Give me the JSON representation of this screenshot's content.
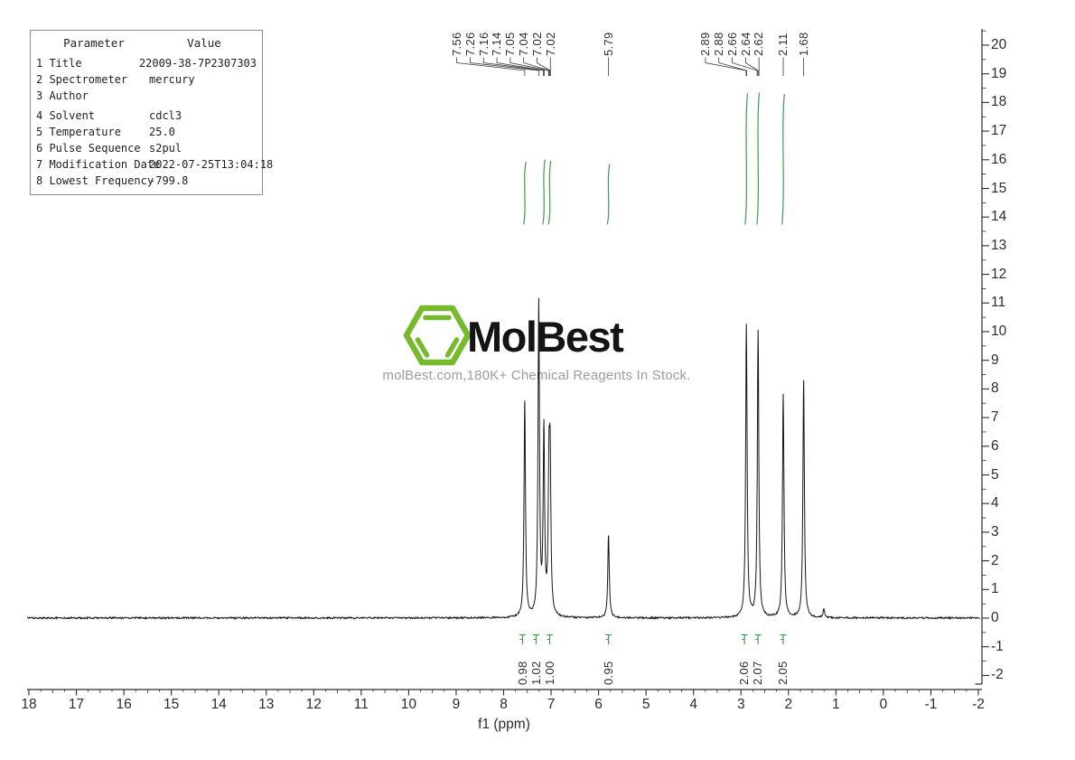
{
  "colors": {
    "spectrum": "#161616",
    "axis": "#2b2b2b",
    "leader": "#3a3a3a",
    "integral_green": "#3f9d46",
    "logo_green": "#77b92c",
    "tagline_gray": "#9c9c9c"
  },
  "parameter_table": {
    "headers": [
      "Parameter",
      "Value"
    ],
    "rows": [
      {
        "num": "1",
        "name": "Title",
        "value": "22009-38-7P2307303"
      },
      {
        "num": "2",
        "name": "Spectrometer",
        "value": "mercury"
      },
      {
        "num": "3",
        "name": "Author",
        "value": ""
      },
      {
        "num": "4",
        "name": "Solvent",
        "value": "cdcl3"
      },
      {
        "num": "5",
        "name": "Temperature",
        "value": "25.0"
      },
      {
        "num": "6",
        "name": "Pulse Sequence",
        "value": "s2pul"
      },
      {
        "num": "7",
        "name": "Modification Date",
        "value": "2022-07-25T13:04:18"
      },
      {
        "num": "8",
        "name": "Lowest Frequency",
        "value": "-799.8"
      }
    ]
  },
  "watermark": {
    "brand": "MolBest",
    "tagline": "molBest.com,180K+ Chemical Reagents In Stock."
  },
  "chart_data": {
    "type": "line",
    "description": "1H NMR spectrum",
    "xlabel": "f1 (ppm)",
    "x_axis": {
      "min": -2,
      "max": 18,
      "major_step": 1,
      "minor_step": 0.25,
      "labels": [
        "18",
        "17",
        "16",
        "15",
        "14",
        "13",
        "12",
        "11",
        "10",
        "9",
        "8",
        "7",
        "6",
        "5",
        "4",
        "3",
        "2",
        "1",
        "0",
        "-1",
        "-2"
      ]
    },
    "y_axis": {
      "min": -2,
      "max": 20,
      "major_step": 1,
      "minor_step": 0.5,
      "side": "right",
      "labels": [
        "20",
        "19",
        "18",
        "17",
        "16",
        "15",
        "14",
        "13",
        "12",
        "11",
        "10",
        "9",
        "8",
        "7",
        "6",
        "5",
        "4",
        "3",
        "2",
        "1",
        "0",
        "-1",
        "-2"
      ]
    },
    "peaks": [
      {
        "ppm": 7.555,
        "height": 7.5
      },
      {
        "ppm": 7.26,
        "height": 10.9
      },
      {
        "ppm": 7.152,
        "height": 6.4
      },
      {
        "ppm": 7.045,
        "height": 4.6
      },
      {
        "ppm": 7.02,
        "height": 4.9
      },
      {
        "ppm": 5.79,
        "height": 2.9
      },
      {
        "ppm": 2.886,
        "height": 10.2
      },
      {
        "ppm": 2.64,
        "height": 10.0
      },
      {
        "ppm": 2.11,
        "height": 7.8
      },
      {
        "ppm": 1.68,
        "height": 8.3
      },
      {
        "ppm": 1.255,
        "height": 0.3
      }
    ],
    "peak_labels": [
      {
        "text": "7.56",
        "anchor_ppm": 7.555
      },
      {
        "text": "7.26",
        "anchor_ppm": 7.26
      },
      {
        "text": "7.16",
        "anchor_ppm": 7.162
      },
      {
        "text": "7.14",
        "anchor_ppm": 7.143
      },
      {
        "text": "7.05",
        "anchor_ppm": 7.052
      },
      {
        "text": "7.04",
        "anchor_ppm": 7.04
      },
      {
        "text": "7.02",
        "anchor_ppm": 7.025
      },
      {
        "text": "7.02",
        "anchor_ppm": 7.015
      },
      {
        "text": "5.79",
        "anchor_ppm": 5.79
      },
      {
        "text": "2.89",
        "anchor_ppm": 2.892
      },
      {
        "text": "2.88",
        "anchor_ppm": 2.88
      },
      {
        "text": "2.66",
        "anchor_ppm": 2.66
      },
      {
        "text": "2.64",
        "anchor_ppm": 2.641
      },
      {
        "text": "2.62",
        "anchor_ppm": 2.621
      },
      {
        "text": "2.11",
        "anchor_ppm": 2.11
      },
      {
        "text": "1.68",
        "anchor_ppm": 1.68
      }
    ],
    "integrals": [
      {
        "value": "0.98",
        "ppm": 7.555
      },
      {
        "value": "1.02",
        "ppm": 7.152
      },
      {
        "value": "1.00",
        "ppm": 7.03
      },
      {
        "value": "0.95",
        "ppm": 5.79
      },
      {
        "value": "2.06",
        "ppm": 2.886
      },
      {
        "value": "2.07",
        "ppm": 2.64
      },
      {
        "value": "2.05",
        "ppm": 2.11
      }
    ]
  }
}
